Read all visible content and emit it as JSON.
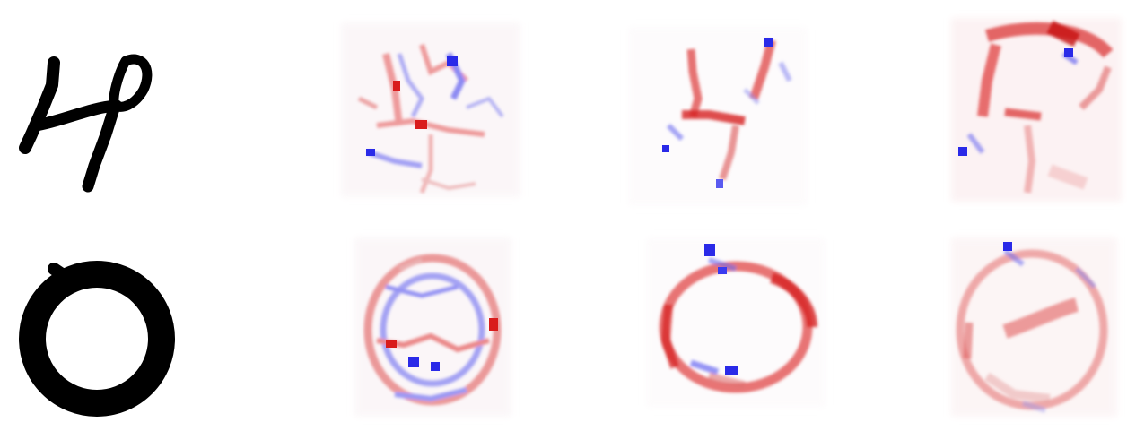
{
  "figure": {
    "rows": [
      {
        "digit": "4",
        "panels": [
          {
            "kind": "input",
            "stroke": "#000000"
          },
          {
            "kind": "attribution",
            "positive": "#d91c1c",
            "negative": "#2a2ae8"
          },
          {
            "kind": "attribution",
            "positive": "#d91c1c",
            "negative": "#2a2ae8"
          },
          {
            "kind": "attribution",
            "positive": "#d91c1c",
            "negative": "#2a2ae8"
          }
        ]
      },
      {
        "digit": "0",
        "panels": [
          {
            "kind": "input",
            "stroke": "#000000"
          },
          {
            "kind": "attribution",
            "positive": "#d91c1c",
            "negative": "#2a2ae8"
          },
          {
            "kind": "attribution",
            "positive": "#d91c1c",
            "negative": "#2a2ae8"
          },
          {
            "kind": "attribution",
            "positive": "#d91c1c",
            "negative": "#2a2ae8"
          }
        ]
      }
    ],
    "colors": {
      "background": "#ffffff",
      "ink": "#000000",
      "positive": "#d91c1c",
      "negative": "#2a2ae8"
    }
  }
}
